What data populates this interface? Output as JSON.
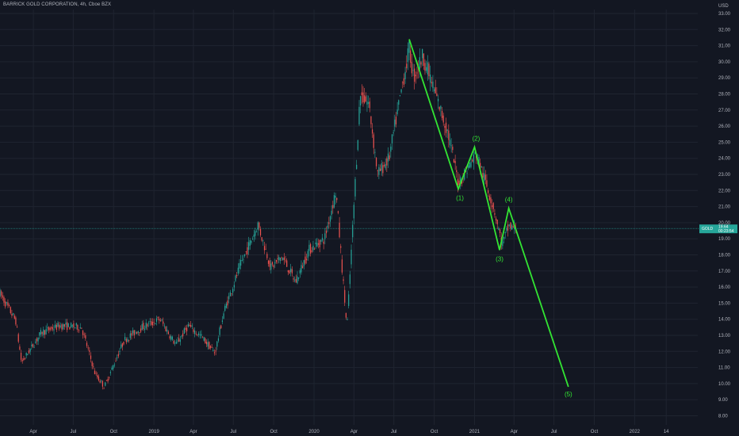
{
  "header": {
    "title": "BARRICK GOLD CORPORATION, 4h, Cboe BZX"
  },
  "chart_data": {
    "type": "candlestick",
    "y_axis": {
      "unit_label": "USD",
      "range": [
        8,
        33
      ],
      "ticks": [
        "33.00",
        "32.00",
        "31.00",
        "30.00",
        "29.00",
        "28.00",
        "27.00",
        "26.00",
        "25.00",
        "24.00",
        "23.00",
        "22.00",
        "21.00",
        "20.00",
        "19.00",
        "18.00",
        "17.00",
        "16.00",
        "15.00",
        "14.00",
        "13.00",
        "12.00",
        "11.00",
        "10.00",
        "9.00",
        "8.00"
      ]
    },
    "x_axis": {
      "range": [
        "2018-01-15",
        "2022-05-25"
      ],
      "ticks": [
        {
          "label": "Apr",
          "date": "2018-04-01"
        },
        {
          "label": "Jul",
          "date": "2018-07-01"
        },
        {
          "label": "Oct",
          "date": "2018-10-01"
        },
        {
          "label": "2019",
          "date": "2019-01-01"
        },
        {
          "label": "Apr",
          "date": "2019-04-01"
        },
        {
          "label": "Jul",
          "date": "2019-07-01"
        },
        {
          "label": "Oct",
          "date": "2019-10-01"
        },
        {
          "label": "2020",
          "date": "2020-01-01"
        },
        {
          "label": "Apr",
          "date": "2020-04-01"
        },
        {
          "label": "Jul",
          "date": "2020-07-01"
        },
        {
          "label": "Oct",
          "date": "2020-10-01"
        },
        {
          "label": "2021",
          "date": "2021-01-01"
        },
        {
          "label": "Apr",
          "date": "2021-04-01"
        },
        {
          "label": "Jul",
          "date": "2021-07-01"
        },
        {
          "label": "Oct",
          "date": "2021-10-01"
        },
        {
          "label": "2022",
          "date": "2022-01-01"
        },
        {
          "label": "14",
          "date": "2022-03-14"
        }
      ]
    },
    "price_path": [
      {
        "date": "2018-01-15",
        "price": 15.6
      },
      {
        "date": "2018-02-20",
        "price": 13.9
      },
      {
        "date": "2018-03-05",
        "price": 11.3
      },
      {
        "date": "2018-04-20",
        "price": 13.2
      },
      {
        "date": "2018-06-01",
        "price": 13.6
      },
      {
        "date": "2018-07-20",
        "price": 13.5
      },
      {
        "date": "2018-08-20",
        "price": 10.6
      },
      {
        "date": "2018-09-10",
        "price": 9.8
      },
      {
        "date": "2018-10-25",
        "price": 12.7
      },
      {
        "date": "2018-12-05",
        "price": 13.5
      },
      {
        "date": "2019-01-15",
        "price": 14.0
      },
      {
        "date": "2019-02-20",
        "price": 12.4
      },
      {
        "date": "2019-03-20",
        "price": 13.6
      },
      {
        "date": "2019-04-20",
        "price": 12.9
      },
      {
        "date": "2019-05-20",
        "price": 11.9
      },
      {
        "date": "2019-06-10",
        "price": 14.5
      },
      {
        "date": "2019-07-15",
        "price": 17.2
      },
      {
        "date": "2019-08-26",
        "price": 19.9
      },
      {
        "date": "2019-09-25",
        "price": 17.2
      },
      {
        "date": "2019-10-20",
        "price": 17.9
      },
      {
        "date": "2019-11-20",
        "price": 16.3
      },
      {
        "date": "2019-12-20",
        "price": 18.3
      },
      {
        "date": "2020-01-25",
        "price": 19.0
      },
      {
        "date": "2020-02-20",
        "price": 22.0
      },
      {
        "date": "2020-03-16",
        "price": 13.4
      },
      {
        "date": "2020-04-05",
        "price": 23.0
      },
      {
        "date": "2020-04-15",
        "price": 28.0
      },
      {
        "date": "2020-05-05",
        "price": 27.4
      },
      {
        "date": "2020-05-25",
        "price": 23.0
      },
      {
        "date": "2020-06-20",
        "price": 24.0
      },
      {
        "date": "2020-07-20",
        "price": 28.5
      },
      {
        "date": "2020-08-05",
        "price": 30.8
      },
      {
        "date": "2020-08-15",
        "price": 29.0
      },
      {
        "date": "2020-09-05",
        "price": 30.4
      },
      {
        "date": "2020-10-01",
        "price": 28.2
      },
      {
        "date": "2020-11-01",
        "price": 25.6
      },
      {
        "date": "2020-11-25",
        "price": 22.5
      },
      {
        "date": "2020-12-15",
        "price": 23.3
      },
      {
        "date": "2021-01-05",
        "price": 24.3
      },
      {
        "date": "2021-01-25",
        "price": 22.6
      },
      {
        "date": "2021-02-15",
        "price": 20.8
      },
      {
        "date": "2021-03-05",
        "price": 18.6
      },
      {
        "date": "2021-03-20",
        "price": 19.8
      },
      {
        "date": "2021-04-05",
        "price": 19.6
      }
    ],
    "current_price_line": {
      "price": 19.64,
      "badge_text": "GOLD",
      "badge_value": "19.64",
      "badge_time": "00:23:54",
      "color": "#26a69a"
    },
    "elliott_wave": {
      "color": "#33e533",
      "points": [
        {
          "date": "2020-08-05",
          "price": 31.4,
          "label": ""
        },
        {
          "date": "2020-11-25",
          "price": 22.1,
          "label": "(1)"
        },
        {
          "date": "2021-01-01",
          "price": 24.7,
          "label": "(2)"
        },
        {
          "date": "2021-02-27",
          "price": 18.3,
          "label": "(3)"
        },
        {
          "date": "2021-03-20",
          "price": 20.9,
          "label": "(4)"
        },
        {
          "date": "2021-08-03",
          "price": 9.8,
          "label": "(5)"
        }
      ]
    },
    "colors": {
      "background": "#131722",
      "grid": "#1f2430",
      "up": "#26a69a",
      "down": "#ef5350",
      "axis_text": "#b2b5be"
    }
  }
}
